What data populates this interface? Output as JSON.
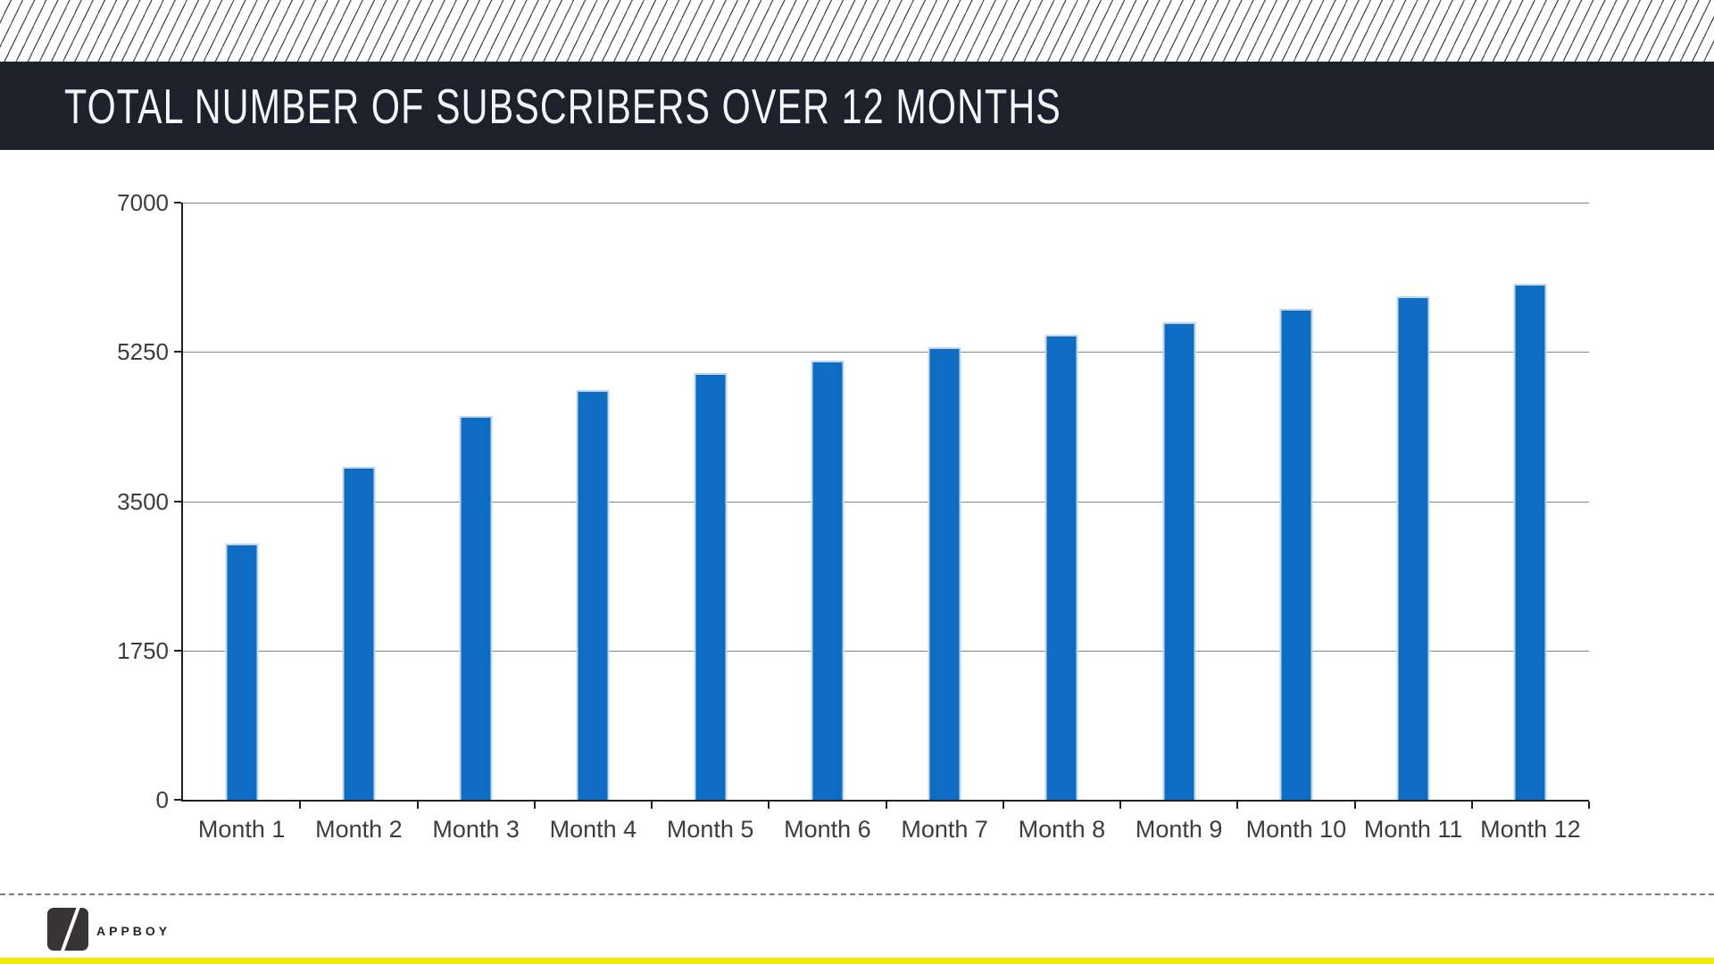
{
  "header": {
    "title": "TOTAL NUMBER OF SUBSCRIBERS OVER 12 MONTHS"
  },
  "footer": {
    "brand": "APPBOY",
    "logo_icon": "appboy-slash-square-icon"
  },
  "colors": {
    "bar": "#0e6cc3",
    "bar_edge": "#bdd7ee",
    "title_bar_bg": "#1b222c",
    "accent_strip": "#f0ea00",
    "gridline": "#848484",
    "axis": "#1f1f1f",
    "label": "#3d3d3d"
  },
  "chart_data": {
    "type": "bar",
    "title": "TOTAL NUMBER OF SUBSCRIBERS OVER 12 MONTHS",
    "categories": [
      "Month 1",
      "Month 2",
      "Month 3",
      "Month 4",
      "Month 5",
      "Month 6",
      "Month 7",
      "Month 8",
      "Month 9",
      "Month 10",
      "Month 11",
      "Month 12"
    ],
    "values": [
      3000,
      3900,
      4500,
      4800,
      5000,
      5150,
      5300,
      5450,
      5600,
      5750,
      5900,
      6050
    ],
    "xlabel": "",
    "ylabel": "",
    "ylim": [
      0,
      7000
    ],
    "yticks": [
      0,
      1750,
      3500,
      5250,
      7000
    ],
    "grid": true,
    "legend": false
  }
}
